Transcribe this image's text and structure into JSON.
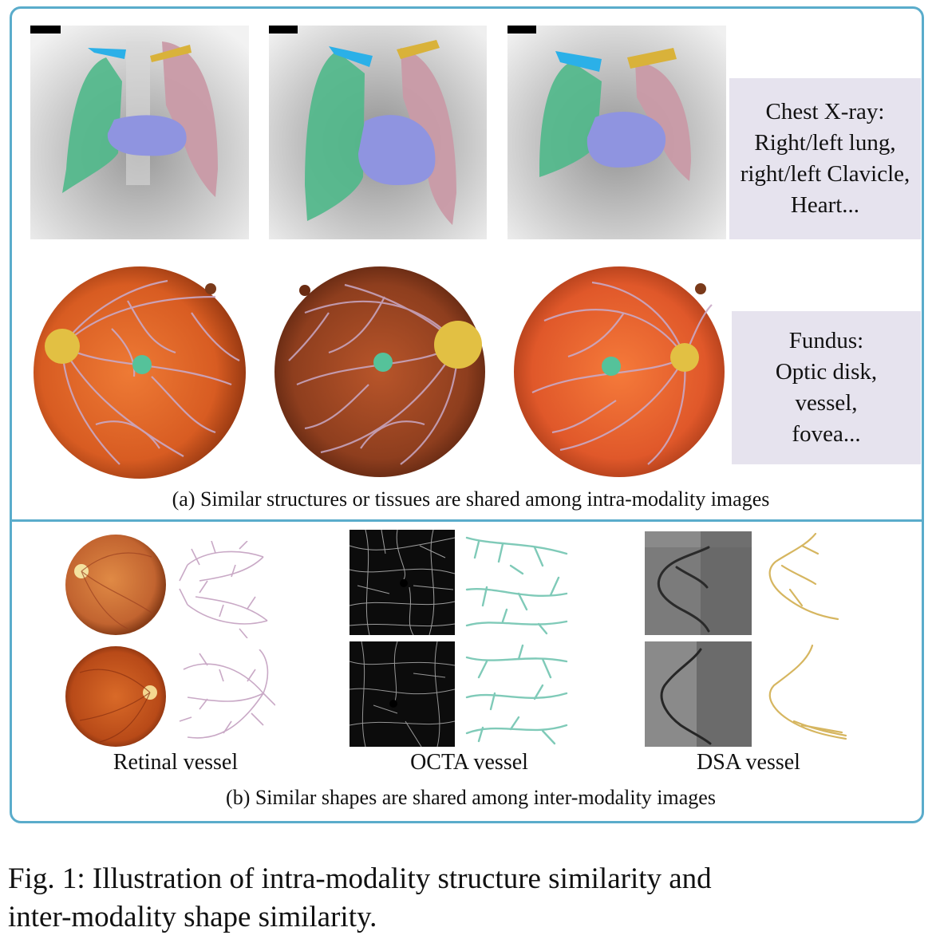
{
  "panel_a": {
    "chest_label": [
      "Chest X-ray:",
      "Right/left lung,",
      "right/left Clavicle,",
      "Heart..."
    ],
    "fundus_label": [
      "Fundus:",
      "Optic disk,",
      "vessel,",
      "fovea..."
    ],
    "caption": "(a) Similar structures or tissues are shared among intra-modality images"
  },
  "panel_b": {
    "labels": [
      "Retinal vessel",
      "OCTA vessel",
      "DSA vessel"
    ],
    "caption": "(b) Similar shapes are shared among inter-modality images"
  },
  "figure_caption": {
    "line1": "Fig. 1: Illustration of intra-modality structure similarity and",
    "line2": "inter-modality shape similarity."
  },
  "colors": {
    "frame": "#5aaccb",
    "right_lung": "#4fb88a",
    "left_lung": "#c99aa6",
    "heart": "#8f94e0",
    "right_clavicle": "#2bb0e8",
    "left_clavicle": "#d9b23a",
    "optic_disk": "#e2c043",
    "fovea": "#55c29a",
    "retinal_vessel": "#c9a9c6",
    "octa_vessel": "#7fcab8",
    "dsa_vessel": "#d6b660"
  }
}
